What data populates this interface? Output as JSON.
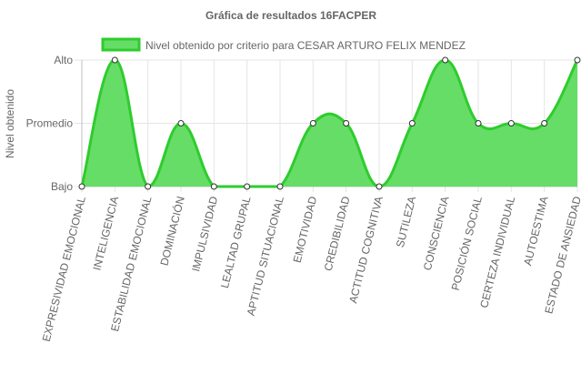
{
  "chart_data": {
    "type": "area",
    "title": "Gráfica de resultados 16FACPER",
    "ylabel": "Nivel obtenido",
    "xlabel": "",
    "y_levels": [
      "Bajo",
      "Promedio",
      "Alto"
    ],
    "categories": [
      "EXPRESIVIDAD EMOCIONAL",
      "INTELIGENCIA",
      "ESTABILIDAD EMOCIONAL",
      "DOMINACIÓN",
      "IMPULSIVIDAD",
      "LEALTAD GRUPAL",
      "APTITUD SITUACIONAL",
      "EMOTIVIDAD",
      "CREDIBILIDAD",
      "ACTITUD COGNITIVA",
      "SUTILEZA",
      "CONSCIENCIA",
      "POSICIÓN SOCIAL",
      "CERTEZA INDIVIDUAL",
      "AUTOESTIMA",
      "ESTADO DE ANSIEDAD"
    ],
    "series": [
      {
        "name": "Nivel obtenido por criterio para CESAR ARTURO FELIX MENDEZ",
        "values": [
          0,
          2,
          0,
          1,
          0,
          0,
          0,
          1,
          1,
          0,
          1,
          2,
          1,
          1,
          1,
          2
        ],
        "labels": [
          "Bajo",
          "Alto",
          "Bajo",
          "Promedio",
          "Bajo",
          "Bajo",
          "Bajo",
          "Promedio",
          "Promedio",
          "Bajo",
          "Promedio",
          "Alto",
          "Promedio",
          "Promedio",
          "Promedio",
          "Alto"
        ]
      }
    ],
    "ylim": [
      0,
      2
    ],
    "grid": true,
    "legend_position": "top",
    "colors": {
      "fill": "#66dd66",
      "line": "#2ecc2e",
      "point_fill": "#ffffff",
      "point_stroke": "#333333",
      "grid": "#e5e5e5",
      "text": "#666666"
    }
  }
}
